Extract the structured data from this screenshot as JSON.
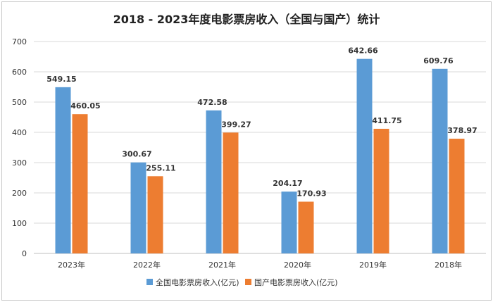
{
  "chart_data": {
    "type": "bar",
    "title": "2018 - 2023年度电影票房收入（全国与国产）统计",
    "categories": [
      "2023年",
      "2022年",
      "2021年",
      "2020年",
      "2019年",
      "2018年"
    ],
    "series": [
      {
        "name": "全国电影票房收入(亿元)",
        "color": "#5b9bd5",
        "values": [
          549.15,
          300.67,
          472.58,
          204.17,
          642.66,
          609.76
        ]
      },
      {
        "name": "国产电影票房收入(亿元)",
        "color": "#ed7d31",
        "values": [
          460.05,
          255.11,
          399.27,
          170.93,
          411.75,
          378.97
        ]
      }
    ],
    "ylim": [
      0,
      700
    ],
    "yticks": [
      0,
      100,
      200,
      300,
      400,
      500,
      600,
      700
    ],
    "grid": true,
    "legend": "bottom"
  }
}
